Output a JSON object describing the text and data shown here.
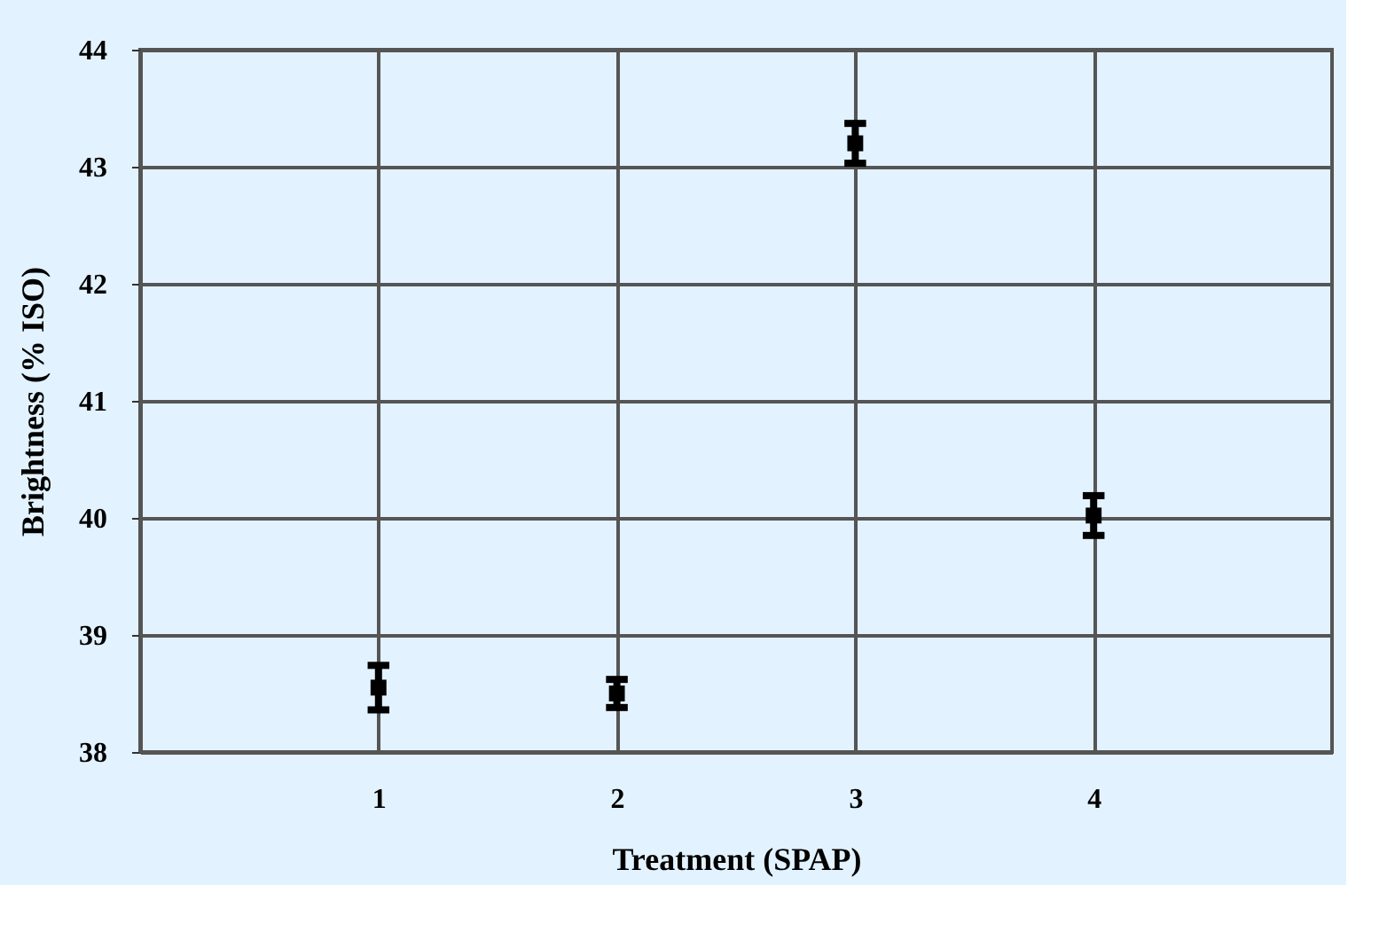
{
  "chart_data": {
    "type": "scatter",
    "xlabel": "Treatment (SPAP)",
    "ylabel": "Brightness (% ISO)",
    "x": [
      1,
      2,
      3,
      4
    ],
    "values": [
      38.55,
      38.5,
      43.2,
      40.02
    ],
    "errors": [
      0.19,
      0.12,
      0.17,
      0.17
    ],
    "color": "#000000",
    "xlim": [
      0,
      5
    ],
    "xticks": [
      1,
      2,
      3,
      4
    ],
    "ylim": [
      38,
      44
    ],
    "yticks": [
      38,
      39,
      40,
      41,
      42,
      43,
      44
    ],
    "grid": true,
    "marker": "square"
  }
}
